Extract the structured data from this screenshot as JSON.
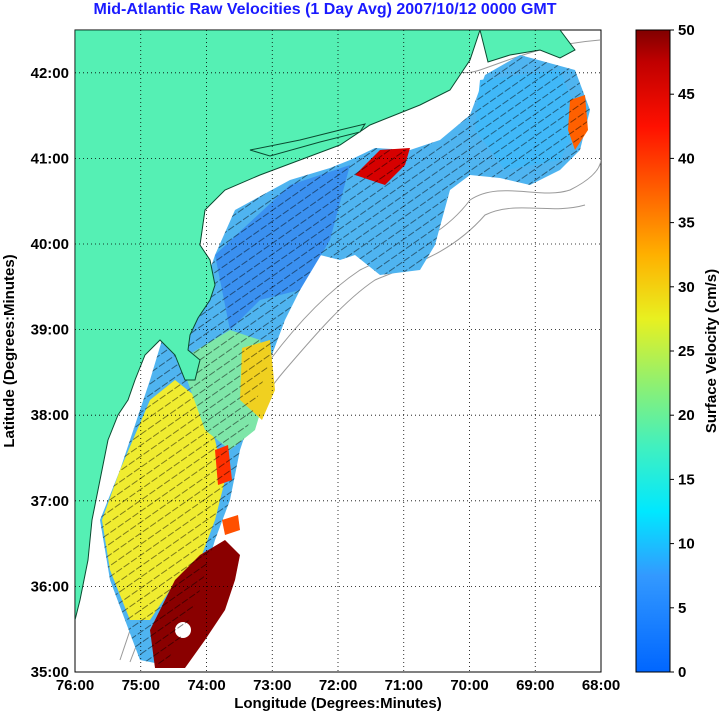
{
  "title": "Mid-Atlantic Raw Velocities (1 Day Avg) 2007/10/12 0000 GMT",
  "map": {
    "xlabel": "Longitude (Degrees:Minutes)",
    "ylabel": "Latitude (Degrees:Minutes)",
    "x_ticks": [
      "76:00",
      "75:00",
      "74:00",
      "73:00",
      "72:00",
      "71:00",
      "70:00",
      "69:00",
      "68:00"
    ],
    "y_ticks": [
      "42:00",
      "41:00",
      "40:00",
      "39:00",
      "38:00",
      "37:00",
      "36:00",
      "35:00"
    ],
    "lon_range": [
      -76,
      -68
    ],
    "lat_range": [
      35,
      42.5
    ],
    "land_color": "#55f0b4",
    "grid": "dotted"
  },
  "colorbar": {
    "label": "Surface Velocity (cm/s)",
    "ticks": [
      "0",
      "5",
      "10",
      "15",
      "20",
      "25",
      "30",
      "35",
      "40",
      "45",
      "50"
    ],
    "range": [
      0,
      50
    ],
    "colormap": "jet"
  }
}
